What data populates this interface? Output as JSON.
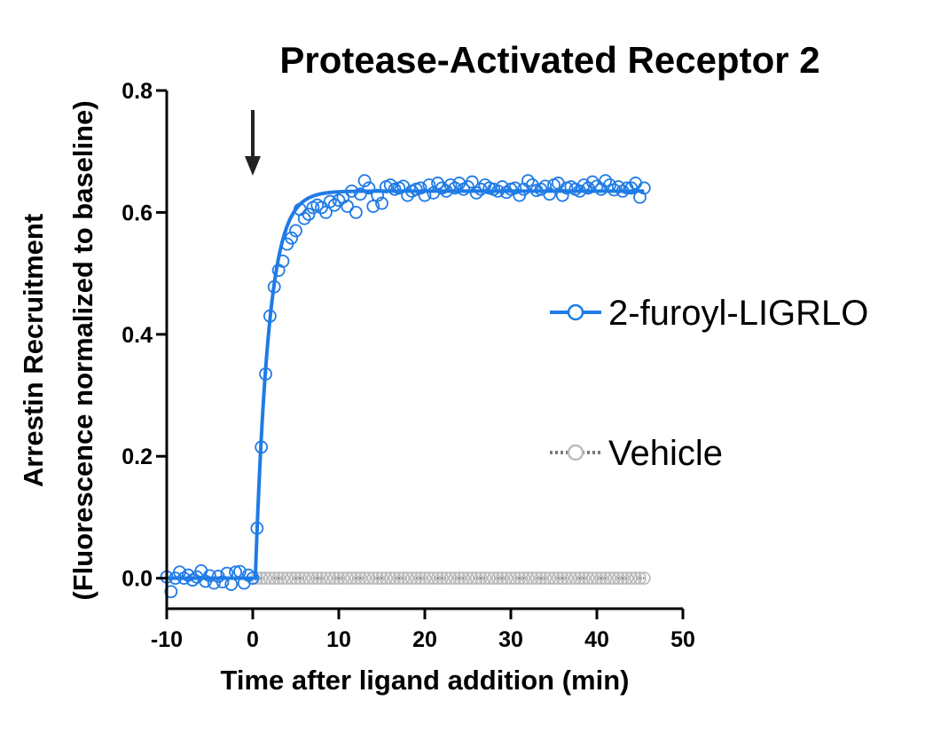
{
  "chart_data": {
    "type": "scatter",
    "title": "Protease-Activated Receptor 2",
    "xlabel": "Time after ligand addition (min)",
    "ylabel_line1": "Arrestin Recruitment",
    "ylabel_line2": "(Fluorescence normalized to baseline)",
    "xlim": [
      -10,
      50
    ],
    "ylim": [
      -0.05,
      0.8
    ],
    "xticks": [
      "-10",
      "0",
      "10",
      "20",
      "30",
      "40",
      "50"
    ],
    "yticks": [
      "0.0",
      "0.2",
      "0.4",
      "0.6",
      "0.8"
    ],
    "ligand_addition_time": 0,
    "legend_position": "right",
    "series": [
      {
        "name": "2-furoyl-LIGRLO",
        "color": "#1f7be6",
        "fit": {
          "model": "one-phase association",
          "plateau": 0.635,
          "onset": 0.3,
          "rate": 0.65,
          "x_end": 45.5
        },
        "x": [
          -10,
          -9.5,
          -9,
          -8.5,
          -8,
          -7.5,
          -7,
          -6.5,
          -6,
          -5.5,
          -5,
          -4.5,
          -4,
          -3.5,
          -3,
          -2.5,
          -2,
          -1.5,
          -1,
          -0.5,
          0,
          0.5,
          1,
          1.5,
          2,
          2.5,
          3,
          3.5,
          4,
          4.5,
          5,
          5.5,
          6,
          6.5,
          7,
          7.5,
          8,
          8.5,
          9,
          9.5,
          10,
          10.5,
          11,
          11.5,
          12,
          12.5,
          13,
          13.5,
          14,
          14.5,
          15,
          15.5,
          16,
          16.5,
          17,
          17.5,
          18,
          18.5,
          19,
          19.5,
          20,
          20.5,
          21,
          21.5,
          22,
          22.5,
          23,
          23.5,
          24,
          24.5,
          25,
          25.5,
          26,
          26.5,
          27,
          27.5,
          28,
          28.5,
          29,
          29.5,
          30,
          30.5,
          31,
          31.5,
          32,
          32.5,
          33,
          33.5,
          34,
          34.5,
          35,
          35.5,
          36,
          36.5,
          37,
          37.5,
          38,
          38.5,
          39,
          39.5,
          40,
          40.5,
          41,
          41.5,
          42,
          42.5,
          43,
          43.5,
          44,
          44.5,
          45,
          45.5
        ],
        "y": [
          0.002,
          -0.022,
          0.0,
          0.01,
          0.0,
          0.005,
          -0.003,
          0.002,
          0.012,
          -0.005,
          0.004,
          -0.008,
          0.003,
          -0.006,
          0.008,
          -0.01,
          0.01,
          0.011,
          -0.008,
          0.005,
          0.0,
          0.082,
          0.215,
          0.335,
          0.43,
          0.478,
          0.505,
          0.52,
          0.548,
          0.558,
          0.57,
          0.605,
          0.59,
          0.597,
          0.608,
          0.612,
          0.608,
          0.6,
          0.618,
          0.612,
          0.62,
          0.625,
          0.61,
          0.635,
          0.6,
          0.63,
          0.652,
          0.64,
          0.61,
          0.628,
          0.615,
          0.642,
          0.645,
          0.638,
          0.64,
          0.643,
          0.628,
          0.635,
          0.638,
          0.64,
          0.628,
          0.645,
          0.632,
          0.648,
          0.64,
          0.635,
          0.645,
          0.64,
          0.648,
          0.638,
          0.642,
          0.65,
          0.632,
          0.638,
          0.645,
          0.64,
          0.638,
          0.635,
          0.642,
          0.633,
          0.638,
          0.64,
          0.628,
          0.638,
          0.652,
          0.645,
          0.636,
          0.638,
          0.643,
          0.63,
          0.645,
          0.648,
          0.628,
          0.64,
          0.642,
          0.638,
          0.635,
          0.645,
          0.64,
          0.65,
          0.643,
          0.638,
          0.652,
          0.645,
          0.637,
          0.642,
          0.635,
          0.64,
          0.64,
          0.648,
          0.625,
          0.64
        ]
      },
      {
        "name": "Vehicle",
        "color": "#bdbdbd",
        "line_color": "#7a7a7a",
        "x": [
          0,
          0.5,
          1,
          1.5,
          2,
          2.5,
          3,
          3.5,
          4,
          4.5,
          5,
          5.5,
          6,
          6.5,
          7,
          7.5,
          8,
          8.5,
          9,
          9.5,
          10,
          10.5,
          11,
          11.5,
          12,
          12.5,
          13,
          13.5,
          14,
          14.5,
          15,
          15.5,
          16,
          16.5,
          17,
          17.5,
          18,
          18.5,
          19,
          19.5,
          20,
          20.5,
          21,
          21.5,
          22,
          22.5,
          23,
          23.5,
          24,
          24.5,
          25,
          25.5,
          26,
          26.5,
          27,
          27.5,
          28,
          28.5,
          29,
          29.5,
          30,
          30.5,
          31,
          31.5,
          32,
          32.5,
          33,
          33.5,
          34,
          34.5,
          35,
          35.5,
          36,
          36.5,
          37,
          37.5,
          38,
          38.5,
          39,
          39.5,
          40,
          40.5,
          41,
          41.5,
          42,
          42.5,
          43,
          43.5,
          44,
          44.5,
          45,
          45.5
        ],
        "y": [
          0.0,
          0.0,
          0.0,
          0.0,
          0.0,
          0.0,
          0.0,
          0.0,
          0.0,
          0.0,
          0.0,
          0.0,
          0.0,
          0.0,
          0.0,
          0.0,
          0.0,
          0.0,
          0.0,
          0.0,
          0.0,
          0.0,
          0.0,
          0.0,
          0.0,
          0.0,
          0.0,
          0.0,
          0.0,
          0.0,
          0.0,
          0.0,
          0.0,
          0.0,
          0.0,
          0.0,
          0.0,
          0.0,
          0.0,
          0.0,
          0.0,
          0.0,
          0.0,
          0.0,
          0.0,
          0.0,
          0.0,
          0.0,
          0.0,
          0.0,
          0.0,
          0.0,
          0.0,
          0.0,
          0.0,
          0.0,
          0.0,
          0.0,
          0.0,
          0.0,
          0.0,
          0.0,
          0.0,
          0.0,
          0.0,
          0.0,
          0.0,
          0.0,
          0.0,
          0.0,
          0.0,
          0.0,
          0.0,
          0.0,
          0.0,
          0.0,
          0.0,
          0.0,
          0.0,
          0.0,
          0.0,
          0.0,
          0.0,
          0.0,
          0.0,
          0.0,
          0.0,
          0.0,
          0.0,
          0.0,
          0.0,
          0.0
        ]
      }
    ]
  }
}
